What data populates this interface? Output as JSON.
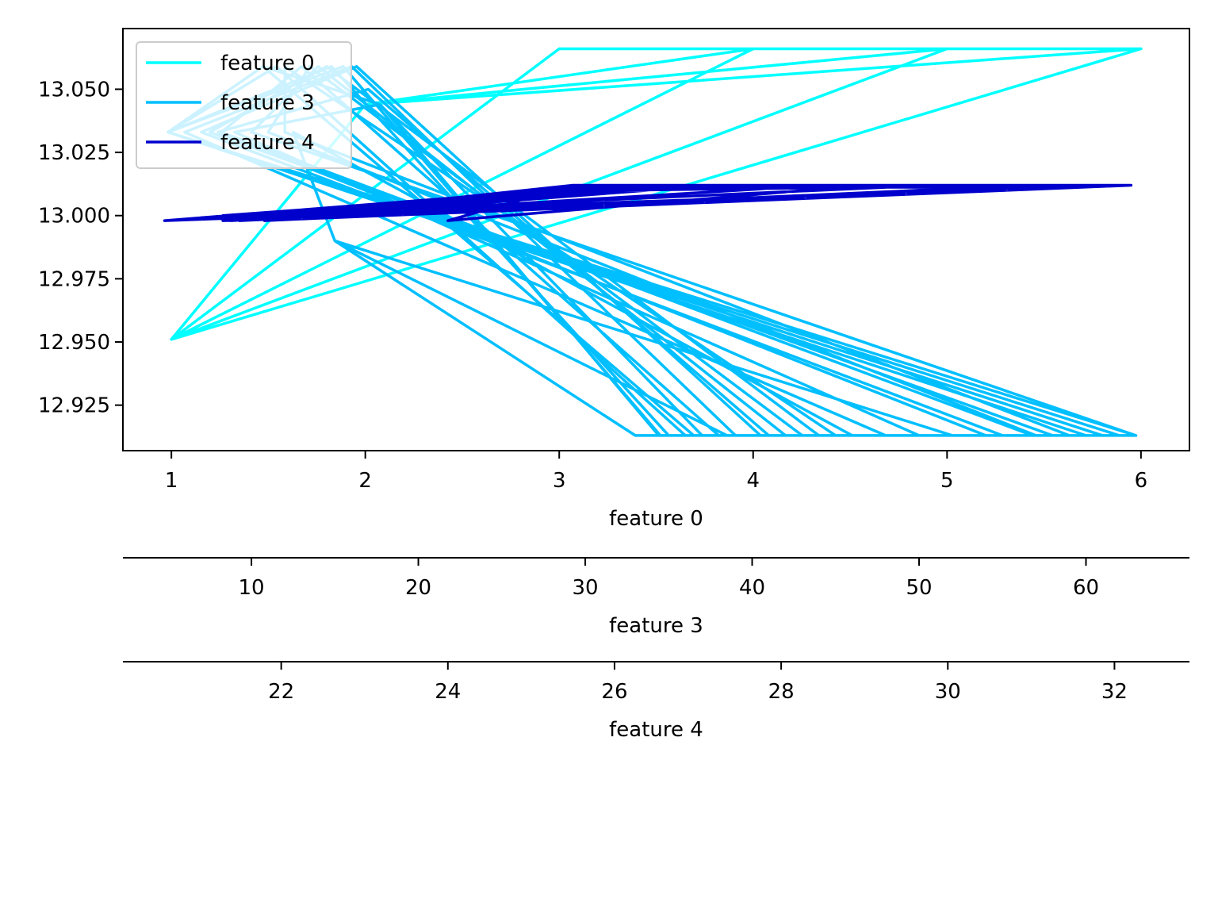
{
  "chart_data": {
    "type": "line",
    "grid": false,
    "legend_placement": "top-left",
    "ylim": [
      12.907,
      13.074
    ],
    "yticks": [
      12.925,
      12.95,
      12.975,
      13.0,
      13.025,
      13.05
    ],
    "ytick_labels": [
      "12.925",
      "12.950",
      "12.975",
      "13.000",
      "13.025",
      "13.050"
    ],
    "axes": [
      {
        "id": "feature0",
        "label": "feature 0",
        "range": [
          0.75,
          6.25
        ],
        "ticks": [
          1,
          2,
          3,
          4,
          5,
          6
        ],
        "tick_labels": [
          "1",
          "2",
          "3",
          "4",
          "5",
          "6"
        ]
      },
      {
        "id": "feature3",
        "label": "feature 3",
        "range": [
          2.3,
          66.2
        ],
        "ticks": [
          10,
          20,
          30,
          40,
          50,
          60
        ],
        "tick_labels": [
          "10",
          "20",
          "30",
          "40",
          "50",
          "60"
        ]
      },
      {
        "id": "feature4",
        "label": "feature 4",
        "range": [
          20.1,
          32.9
        ],
        "ticks": [
          22,
          24,
          26,
          28,
          30,
          32
        ],
        "tick_labels": [
          "22",
          "24",
          "26",
          "28",
          "30",
          "32"
        ]
      }
    ],
    "series": [
      {
        "name": "feature 0",
        "color": "#00ffff",
        "x_axis": "feature0",
        "points": [
          [
            1,
            12.951
          ],
          [
            3,
            13.066
          ],
          [
            6,
            13.066
          ],
          [
            1,
            12.951
          ],
          [
            4,
            13.066
          ],
          [
            6,
            13.066
          ],
          [
            1,
            12.951
          ],
          [
            5,
            13.066
          ],
          [
            6,
            13.066
          ],
          [
            1,
            12.951
          ],
          [
            6,
            13.066
          ],
          [
            2,
            13.044
          ],
          [
            6,
            13.066
          ],
          [
            1,
            12.951
          ],
          [
            2,
            13.044
          ],
          [
            5,
            13.066
          ],
          [
            1,
            12.951
          ],
          [
            2,
            13.044
          ],
          [
            4,
            13.066
          ],
          [
            1,
            12.951
          ],
          [
            3,
            13.066
          ],
          [
            6,
            13.066
          ],
          [
            2,
            13.044
          ],
          [
            1,
            12.951
          ],
          [
            6,
            13.066
          ],
          [
            1,
            12.951
          ],
          [
            2,
            13.044
          ],
          [
            6,
            13.066
          ]
        ]
      },
      {
        "name": "feature 3",
        "color": "#00bfff",
        "x_axis": "feature3",
        "points": [
          [
            5.0,
            13.033
          ],
          [
            10.7,
            13.059
          ],
          [
            17.7,
            13.044
          ],
          [
            34.4,
            12.913
          ],
          [
            56.8,
            12.913
          ],
          [
            8.2,
            13.033
          ],
          [
            13.0,
            13.059
          ],
          [
            38.0,
            12.913
          ],
          [
            63.0,
            12.913
          ],
          [
            10.0,
            13.033
          ],
          [
            14.0,
            13.059
          ],
          [
            42.0,
            12.913
          ],
          [
            61.0,
            12.913
          ],
          [
            5.0,
            13.033
          ],
          [
            11.5,
            13.059
          ],
          [
            36.0,
            12.913
          ],
          [
            55.0,
            12.913
          ],
          [
            7.0,
            13.033
          ],
          [
            16.3,
            13.059
          ],
          [
            40.5,
            12.913
          ],
          [
            59.0,
            12.913
          ],
          [
            12.0,
            13.033
          ],
          [
            12.0,
            13.059
          ],
          [
            45.0,
            12.913
          ],
          [
            63.0,
            12.913
          ],
          [
            5.0,
            13.033
          ],
          [
            14.8,
            13.059
          ],
          [
            35.0,
            12.913
          ],
          [
            50.0,
            12.913
          ],
          [
            9.0,
            13.033
          ],
          [
            17.7,
            13.044
          ],
          [
            37.0,
            12.913
          ],
          [
            52.0,
            12.913
          ],
          [
            15.0,
            12.99
          ],
          [
            33.0,
            12.913
          ],
          [
            48.0,
            12.913
          ],
          [
            6.0,
            13.033
          ],
          [
            16.0,
            13.059
          ],
          [
            39.0,
            12.913
          ],
          [
            57.0,
            12.913
          ],
          [
            11.0,
            13.033
          ],
          [
            13.5,
            13.059
          ],
          [
            43.0,
            12.913
          ],
          [
            62.0,
            12.913
          ],
          [
            5.0,
            13.033
          ],
          [
            15.5,
            13.059
          ],
          [
            34.5,
            12.913
          ],
          [
            54.0,
            12.913
          ],
          [
            8.0,
            13.033
          ],
          [
            17.0,
            13.05
          ],
          [
            41.0,
            12.913
          ],
          [
            60.0,
            12.913
          ],
          [
            5.0,
            13.033
          ],
          [
            10.7,
            13.059
          ],
          [
            36.5,
            12.913
          ],
          [
            46.0,
            12.913
          ],
          [
            12.5,
            13.033
          ],
          [
            15.0,
            12.99
          ],
          [
            38.5,
            12.913
          ],
          [
            58.0,
            12.913
          ],
          [
            7.5,
            13.033
          ],
          [
            14.5,
            13.059
          ],
          [
            44.0,
            12.913
          ],
          [
            63.0,
            12.913
          ]
        ]
      },
      {
        "name": "feature 4",
        "color": "#0000cd",
        "x_axis": "feature4",
        "points": [
          [
            20.6,
            12.998
          ],
          [
            26.0,
            13.012
          ],
          [
            32.2,
            13.012
          ],
          [
            21.3,
            12.998
          ],
          [
            26.5,
            13.011
          ],
          [
            31.8,
            13.012
          ],
          [
            21.3,
            12.999
          ],
          [
            25.8,
            13.012
          ],
          [
            30.5,
            13.011
          ],
          [
            21.8,
            12.998
          ],
          [
            26.2,
            13.012
          ],
          [
            32.2,
            13.012
          ],
          [
            20.6,
            12.998
          ],
          [
            25.6,
            13.011
          ],
          [
            29.8,
            13.012
          ],
          [
            21.0,
            12.999
          ],
          [
            26.0,
            13.01
          ],
          [
            31.0,
            13.012
          ],
          [
            21.5,
            12.998
          ],
          [
            25.5,
            13.012
          ],
          [
            32.0,
            13.012
          ],
          [
            22.0,
            12.999
          ],
          [
            26.8,
            13.011
          ],
          [
            29.0,
            13.012
          ],
          [
            24.0,
            12.998
          ],
          [
            25.5,
            13.012
          ],
          [
            32.2,
            13.012
          ],
          [
            21.3,
            13.0
          ],
          [
            26.3,
            13.012
          ],
          [
            30.8,
            13.011
          ],
          [
            20.6,
            12.998
          ],
          [
            27.0,
            13.012
          ],
          [
            32.2,
            13.012
          ],
          [
            22.5,
            12.999
          ],
          [
            25.9,
            13.01
          ],
          [
            28.5,
            13.012
          ],
          [
            21.4,
            12.998
          ],
          [
            26.1,
            13.012
          ],
          [
            31.5,
            13.012
          ]
        ]
      }
    ]
  }
}
